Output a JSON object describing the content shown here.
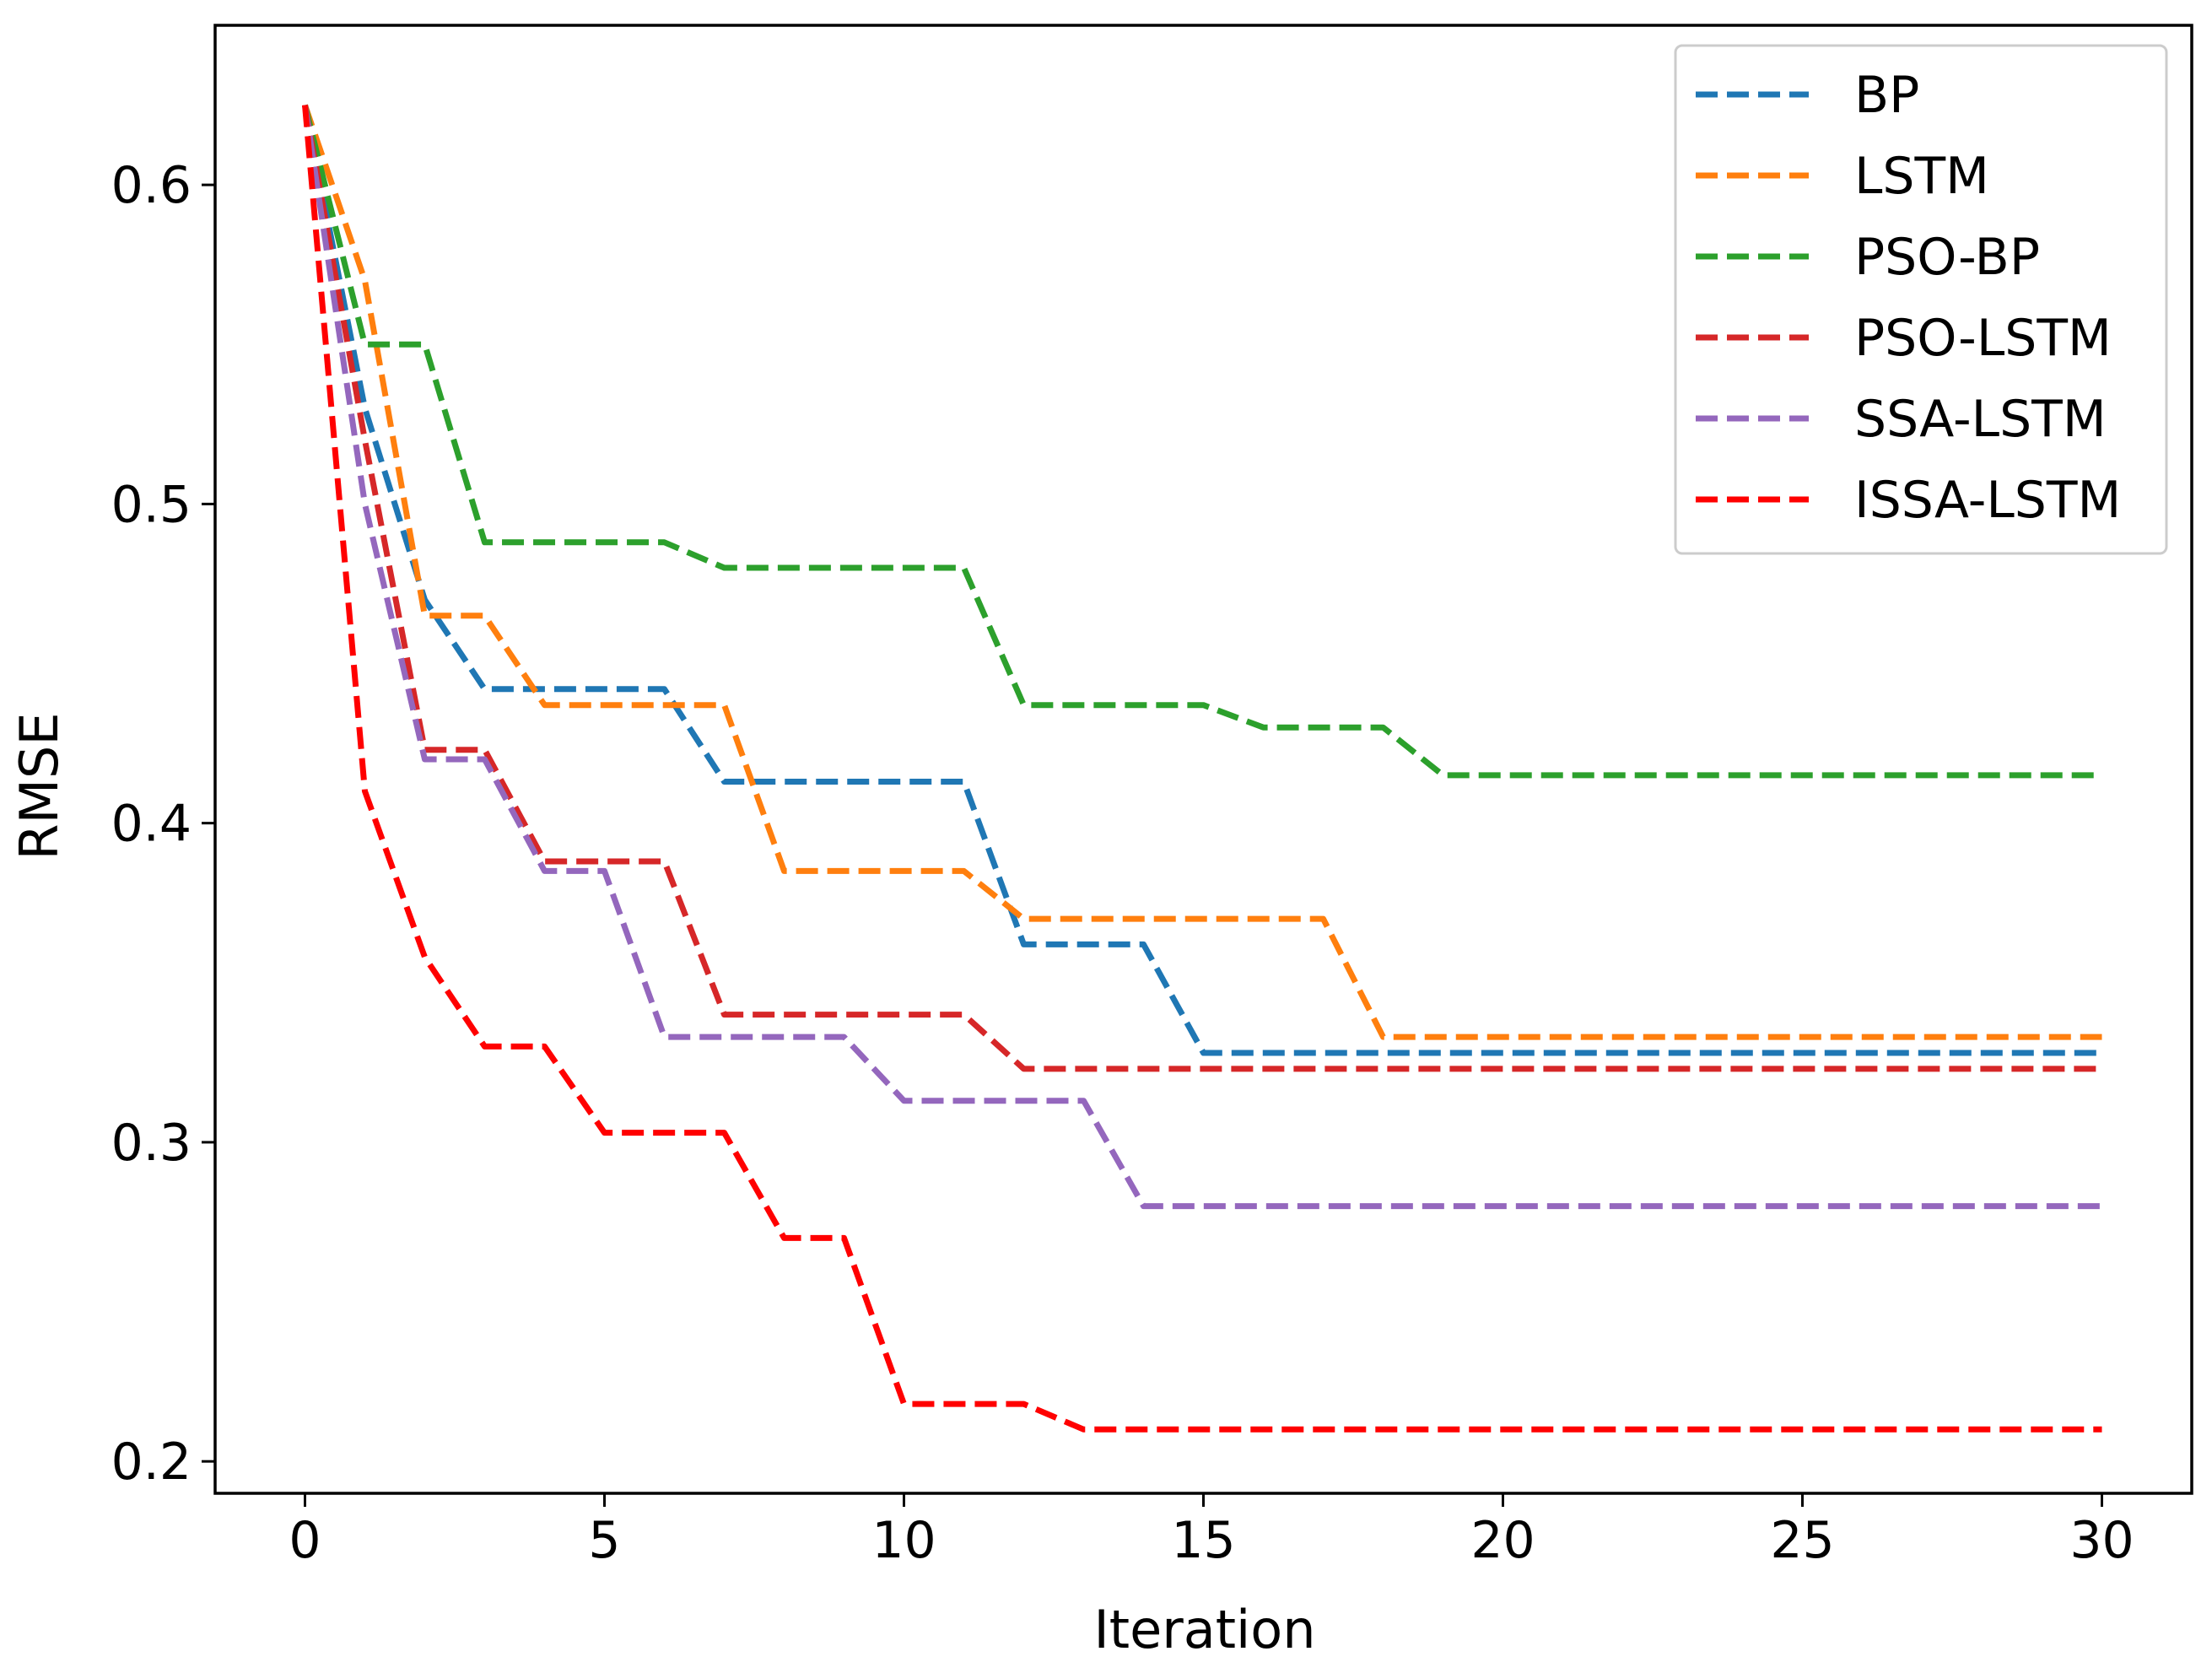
{
  "chart_data": {
    "type": "line",
    "title": "",
    "xlabel": "Iteration",
    "ylabel": "RMSE",
    "xlim": [
      -1.5,
      31.5
    ],
    "ylim": [
      0.19,
      0.65
    ],
    "xticks": [
      0,
      5,
      10,
      15,
      20,
      25,
      30
    ],
    "xtick_labels": [
      "0",
      "5",
      "10",
      "15",
      "20",
      "25",
      "30"
    ],
    "yticks": [
      0.2,
      0.3,
      0.4,
      0.5,
      0.6
    ],
    "ytick_labels": [
      "0.2",
      "0.3",
      "0.4",
      "0.5",
      "0.6"
    ],
    "grid": false,
    "legend_position": "top-right",
    "line_style": "dashed",
    "series": [
      {
        "name": "BP",
        "color": "#1f77b4",
        "x": [
          0,
          1,
          2,
          3,
          4,
          5,
          6,
          7,
          8,
          9,
          10,
          11,
          12,
          13,
          14,
          15,
          16,
          17,
          18,
          19,
          20,
          21,
          22,
          23,
          24,
          25,
          26,
          27,
          28,
          29,
          30
        ],
        "y": [
          0.625,
          0.53,
          0.47,
          0.442,
          0.442,
          0.442,
          0.442,
          0.413,
          0.413,
          0.413,
          0.413,
          0.413,
          0.362,
          0.362,
          0.362,
          0.328,
          0.328,
          0.328,
          0.328,
          0.328,
          0.328,
          0.328,
          0.328,
          0.328,
          0.328,
          0.328,
          0.328,
          0.328,
          0.328,
          0.328,
          0.328
        ]
      },
      {
        "name": "LSTM",
        "color": "#ff7f0e",
        "x": [
          0,
          1,
          2,
          3,
          4,
          5,
          6,
          7,
          8,
          9,
          10,
          11,
          12,
          13,
          14,
          15,
          16,
          17,
          18,
          19,
          20,
          21,
          22,
          23,
          24,
          25,
          26,
          27,
          28,
          29,
          30
        ],
        "y": [
          0.625,
          0.57,
          0.465,
          0.465,
          0.437,
          0.437,
          0.437,
          0.437,
          0.385,
          0.385,
          0.385,
          0.385,
          0.37,
          0.37,
          0.37,
          0.37,
          0.37,
          0.37,
          0.333,
          0.333,
          0.333,
          0.333,
          0.333,
          0.333,
          0.333,
          0.333,
          0.333,
          0.333,
          0.333,
          0.333,
          0.333
        ]
      },
      {
        "name": "PSO-BP",
        "color": "#2ca02c",
        "x": [
          0,
          1,
          2,
          3,
          4,
          5,
          6,
          7,
          8,
          9,
          10,
          11,
          12,
          13,
          14,
          15,
          16,
          17,
          18,
          19,
          20,
          21,
          22,
          23,
          24,
          25,
          26,
          27,
          28,
          29,
          30
        ],
        "y": [
          0.625,
          0.55,
          0.55,
          0.488,
          0.488,
          0.488,
          0.488,
          0.48,
          0.48,
          0.48,
          0.48,
          0.48,
          0.437,
          0.437,
          0.437,
          0.437,
          0.43,
          0.43,
          0.43,
          0.415,
          0.415,
          0.415,
          0.415,
          0.415,
          0.415,
          0.415,
          0.415,
          0.415,
          0.415,
          0.415,
          0.415
        ]
      },
      {
        "name": "PSO-LSTM",
        "color": "#d62728",
        "x": [
          0,
          1,
          2,
          3,
          4,
          5,
          6,
          7,
          8,
          9,
          10,
          11,
          12,
          13,
          14,
          15,
          16,
          17,
          18,
          19,
          20,
          21,
          22,
          23,
          24,
          25,
          26,
          27,
          28,
          29,
          30
        ],
        "y": [
          0.625,
          0.52,
          0.423,
          0.423,
          0.388,
          0.388,
          0.388,
          0.34,
          0.34,
          0.34,
          0.34,
          0.34,
          0.323,
          0.323,
          0.323,
          0.323,
          0.323,
          0.323,
          0.323,
          0.323,
          0.323,
          0.323,
          0.323,
          0.323,
          0.323,
          0.323,
          0.323,
          0.323,
          0.323,
          0.323,
          0.323
        ]
      },
      {
        "name": "SSA-LSTM",
        "color": "#9467bd",
        "x": [
          0,
          1,
          2,
          3,
          4,
          5,
          6,
          7,
          8,
          9,
          10,
          11,
          12,
          13,
          14,
          15,
          16,
          17,
          18,
          19,
          20,
          21,
          22,
          23,
          24,
          25,
          26,
          27,
          28,
          29,
          30
        ],
        "y": [
          0.625,
          0.5,
          0.42,
          0.42,
          0.385,
          0.385,
          0.333,
          0.333,
          0.333,
          0.333,
          0.313,
          0.313,
          0.313,
          0.313,
          0.28,
          0.28,
          0.28,
          0.28,
          0.28,
          0.28,
          0.28,
          0.28,
          0.28,
          0.28,
          0.28,
          0.28,
          0.28,
          0.28,
          0.28,
          0.28,
          0.28
        ]
      },
      {
        "name": "ISSA-LSTM",
        "color": "#ff0000",
        "x": [
          0,
          1,
          2,
          3,
          4,
          5,
          6,
          7,
          8,
          9,
          10,
          11,
          12,
          13,
          14,
          15,
          16,
          17,
          18,
          19,
          20,
          21,
          22,
          23,
          24,
          25,
          26,
          27,
          28,
          29,
          30
        ],
        "y": [
          0.625,
          0.41,
          0.358,
          0.33,
          0.33,
          0.303,
          0.303,
          0.303,
          0.27,
          0.27,
          0.218,
          0.218,
          0.218,
          0.21,
          0.21,
          0.21,
          0.21,
          0.21,
          0.21,
          0.21,
          0.21,
          0.21,
          0.21,
          0.21,
          0.21,
          0.21,
          0.21,
          0.21,
          0.21,
          0.21,
          0.21
        ]
      }
    ]
  }
}
